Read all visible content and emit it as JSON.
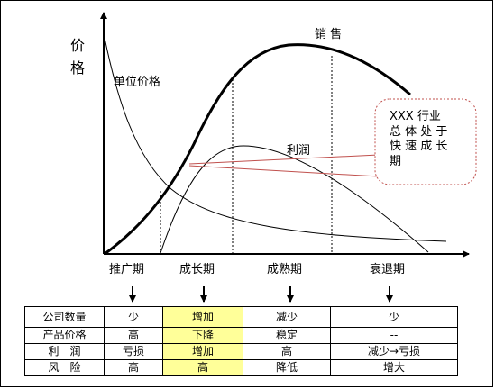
{
  "axis": {
    "y_label_top": "价",
    "y_label_bottom": "格"
  },
  "curves": {
    "sales": "销 售",
    "unit_price": "单位价格",
    "profit": "利润"
  },
  "callout": {
    "lines": [
      "XXX 行业",
      "总 体 处 于",
      "快 速 成 长",
      "期"
    ]
  },
  "stages": [
    "推广期",
    "成长期",
    "成熟期",
    "衰退期"
  ],
  "table": {
    "rows": [
      {
        "label": "公司数量",
        "values": [
          "少",
          "增加",
          "减少",
          "少"
        ]
      },
      {
        "label": "产品价格",
        "values": [
          "高",
          "下降",
          "稳定",
          "--"
        ]
      },
      {
        "label": "利　润",
        "values": [
          "亏损",
          "增加",
          "高",
          "减少→亏损"
        ]
      },
      {
        "label": "风　险",
        "values": [
          "高",
          "高",
          "降低",
          "增大"
        ]
      }
    ]
  },
  "colors": {
    "highlight": "#ffff99",
    "callout_border": "#c0504d",
    "callout_line": "#c0504d",
    "curve": "#000000"
  }
}
